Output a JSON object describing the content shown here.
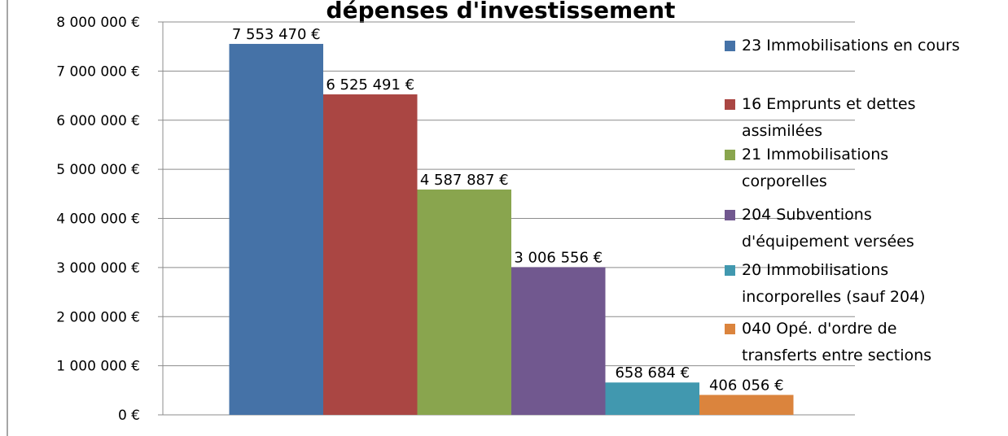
{
  "chart_data": {
    "type": "bar",
    "title": "dépenses d'investissement",
    "series": [
      {
        "name": "23 Immobilisations en cours",
        "color": "#4572a7",
        "values": [
          7553470
        ],
        "value_labels": [
          "7 553 470 €"
        ]
      },
      {
        "name": "16 Emprunts et dettes assimilées",
        "color": "#aa4643",
        "values": [
          6525491
        ],
        "value_labels": [
          "6 525 491 €"
        ]
      },
      {
        "name": "21 Immobilisations corporelles",
        "color": "#89a54e",
        "values": [
          4587887
        ],
        "value_labels": [
          "4 587 887 €"
        ]
      },
      {
        "name": "204 Subventions d'équipement versées",
        "color": "#71588f",
        "values": [
          3006556
        ],
        "value_labels": [
          "3 006 556 €"
        ]
      },
      {
        "name": "20 Immobilisations incorporelles (sauf 204)",
        "color": "#4198af",
        "values": [
          658684
        ],
        "value_labels": [
          "658 684 €"
        ]
      },
      {
        "name": "040 Opé. d'ordre de transferts entre sections",
        "color": "#db843d",
        "values": [
          406056
        ],
        "value_labels": [
          "406 056 €"
        ]
      }
    ],
    "ylim": [
      0,
      8000000
    ],
    "yticks": [
      {
        "value": 0,
        "label": "0 €"
      },
      {
        "value": 1000000,
        "label": "1 000 000 €"
      },
      {
        "value": 2000000,
        "label": "2 000 000 €"
      },
      {
        "value": 3000000,
        "label": "3 000 000 €"
      },
      {
        "value": 4000000,
        "label": "4 000 000 €"
      },
      {
        "value": 5000000,
        "label": "5 000 000 €"
      },
      {
        "value": 6000000,
        "label": "6 000 000 €"
      },
      {
        "value": 7000000,
        "label": "7 000 000 €"
      },
      {
        "value": 8000000,
        "label": "8 000 000 €"
      }
    ],
    "grid": true,
    "legend": "right"
  }
}
